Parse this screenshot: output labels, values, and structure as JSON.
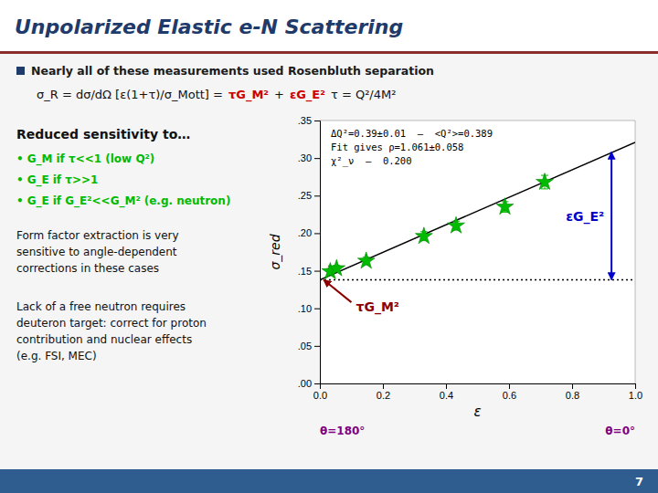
{
  "chart_data": {
    "type": "scatter",
    "title": "Unpolarized Elastic e-N Scattering",
    "x_label": "ε",
    "y_label": "σ_red",
    "xlim": [
      0.0,
      1.0
    ],
    "ylim": [
      0.0,
      0.35
    ],
    "xticks": [
      {
        "value": 0.0,
        "label": "0.0"
      },
      0.2,
      0.4,
      0.6,
      0.8,
      {
        "value": 1.0,
        "label": "1.0"
      }
    ],
    "yticks": [
      {
        "value": 0.0,
        "label": ".00"
      },
      {
        "value": 0.05,
        "label": ".05"
      },
      {
        "value": 0.1,
        "label": ".10"
      },
      {
        "value": 0.15,
        "label": ".15"
      },
      {
        "value": 0.2,
        "label": ".20"
      },
      {
        "value": 0.25,
        "label": ".25"
      },
      {
        "value": 0.3,
        "label": ".30"
      },
      {
        "value": 0.35,
        "label": ".35"
      }
    ],
    "grid": false,
    "series": [
      {
        "type": "scatter",
        "color": "#00BB00",
        "marker": "star",
        "x": [
          0.033,
          0.053,
          0.147,
          0.33,
          0.432,
          0.587,
          0.713
        ],
        "values": [
          0.149,
          0.153,
          0.163,
          0.196,
          0.21,
          0.235,
          0.268
        ],
        "errors": [
          0.004,
          0.004,
          0.005,
          0.006,
          0.006,
          0.007,
          0.009
        ]
      },
      {
        "type": "line",
        "color": "#000000",
        "line_style": "solid",
        "x": [
          0.0,
          1.0
        ],
        "values": [
          0.138,
          0.321
        ]
      },
      {
        "type": "line",
        "color": "#000000",
        "line_style": "dotted",
        "x": [
          0.0,
          1.0
        ],
        "values": [
          0.138,
          0.138
        ]
      }
    ],
    "note_lines": [
      "ΔQ²=0.39±0.01  –  <Q²>=0.389",
      "Fit gives ρ=1.061±0.058",
      "χ²_ν  –  0.200"
    ],
    "arrows": [
      {
        "label": "εG_E²",
        "color": "#0000CC",
        "x": [
          0.925,
          0.925
        ],
        "y": [
          0.138,
          0.308
        ]
      },
      {
        "label": "τG_M²",
        "color": "#8B0000",
        "x": [
          0.1,
          0.012
        ],
        "y": [
          0.108,
          0.138
        ]
      }
    ],
    "x_end_labels": [
      "θ=180°",
      "θ=0°"
    ],
    "x_end_label_color": "#800080"
  },
  "slide": {
    "bullet": "Nearly all of these measurements used Rosenbluth separation",
    "formula": [
      {
        "text": "σ_R = dσ/dΩ [ε(1+τ)/σ_Mott] =",
        "color": "#111111"
      },
      {
        "text": "τG_M²",
        "color": "#CC0000"
      },
      {
        "text": "+",
        "color": "#111111"
      },
      {
        "text": "εG_E²",
        "color": "#CC0000"
      },
      {
        "text": "τ = Q²/4M²",
        "color": "#111111"
      }
    ],
    "heading": "Reduced sensitivity to…",
    "bullet_color": "#00BB00",
    "bullets": [
      [
        "•",
        "G_M",
        "if τ<<1 (low Q²)"
      ],
      [
        "•",
        "G_E",
        "if τ>>1"
      ],
      [
        "•",
        "G_E",
        "if G_E²<<G_M²",
        "(e.g. neutron)"
      ]
    ],
    "paragraphs": [
      [
        "Form factor extraction is very",
        "sensitive to angle-dependent",
        "corrections in these cases"
      ],
      [
        "Lack of a free neutron requires",
        "deuteron target: correct for proton",
        "contribution and nuclear effects",
        "(e.g. FSI, MEC)"
      ]
    ],
    "page_number": "7"
  }
}
